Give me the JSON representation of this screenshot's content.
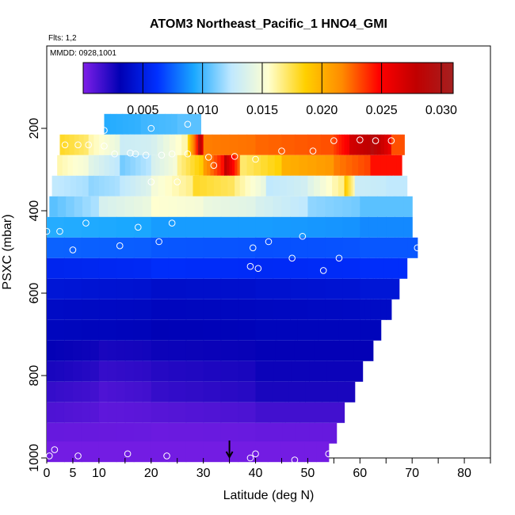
{
  "chart_data": {
    "type": "heatmap",
    "title": "ATOM3 Northeast_Pacific_1 HNO4_GMI",
    "flights_label": "Flts: 1,2",
    "dates_label": "MMDD: 0928,1001",
    "xlabel": "Latitude (deg N)",
    "ylabel": "PSXC (mbar)",
    "xlim": [
      0,
      85
    ],
    "ylim": [
      1000,
      0
    ],
    "x_ticks": [
      0,
      5,
      10,
      20,
      30,
      40,
      50,
      60,
      70,
      80
    ],
    "y_ticks": [
      200,
      400,
      600,
      800,
      1000
    ],
    "colorbar": {
      "range": [
        0,
        0.031
      ],
      "ticks": [
        "0.005",
        "0.010",
        "0.015",
        "0.020",
        "0.025",
        "0.030"
      ],
      "tick_values": [
        0.005,
        0.01,
        0.015,
        0.02,
        0.025,
        0.03
      ],
      "colors": [
        "#7f1fe8",
        "#0000b4",
        "#0030ff",
        "#1aa8ff",
        "#bfe8ff",
        "#ffffd0",
        "#ffd000",
        "#ff8a00",
        "#ff0000",
        "#c00000",
        "#a52020"
      ]
    },
    "arrow_latitude": 35,
    "layers": [
      {
        "p": 190,
        "x0": 11,
        "x1": 29.5,
        "segments": [
          [
            11,
            0.0095
          ],
          [
            18,
            0.01
          ],
          [
            25,
            0.0105
          ]
        ]
      },
      {
        "p": 240,
        "x0": 2.5,
        "x1": 68.5,
        "segments": [
          [
            2.5,
            0.018
          ],
          [
            8,
            0.016
          ],
          [
            14,
            0.013
          ],
          [
            20,
            0.0135
          ],
          [
            27,
            0.0185
          ],
          [
            29,
            0.03
          ],
          [
            30,
            0.022
          ],
          [
            40,
            0.0225
          ],
          [
            55,
            0.0235
          ],
          [
            58,
            0.027
          ],
          [
            62,
            0.029
          ],
          [
            66,
            0.023
          ]
        ]
      },
      {
        "p": 290,
        "x0": 2,
        "x1": 68,
        "segments": [
          [
            2,
            0.016
          ],
          [
            8,
            0.014
          ],
          [
            14,
            0.011
          ],
          [
            20,
            0.0135
          ],
          [
            25,
            0.0165
          ],
          [
            30,
            0.021
          ],
          [
            34,
            0.028
          ],
          [
            37,
            0.017
          ],
          [
            45,
            0.02
          ],
          [
            55,
            0.022
          ],
          [
            62,
            0.0245
          ]
        ]
      },
      {
        "p": 340,
        "x0": 1,
        "x1": 69,
        "segments": [
          [
            1,
            0.0125
          ],
          [
            8,
            0.0115
          ],
          [
            14,
            0.0125
          ],
          [
            20,
            0.015
          ],
          [
            28,
            0.018
          ],
          [
            36,
            0.0165
          ],
          [
            42,
            0.0125
          ],
          [
            50,
            0.014
          ],
          [
            57,
            0.019
          ],
          [
            59,
            0.013
          ],
          [
            65,
            0.0125
          ]
        ]
      },
      {
        "p": 390,
        "x0": 0.5,
        "x1": 70,
        "segments": [
          [
            0.5,
            0.0105
          ],
          [
            10,
            0.0135
          ],
          [
            20,
            0.0155
          ],
          [
            30,
            0.0145
          ],
          [
            40,
            0.0135
          ],
          [
            50,
            0.0115
          ],
          [
            60,
            0.0105
          ]
        ]
      },
      {
        "p": 440,
        "x0": 0,
        "x1": 70,
        "segments": [
          [
            0,
            0.0095
          ],
          [
            20,
            0.009
          ],
          [
            40,
            0.009
          ],
          [
            60,
            0.0085
          ]
        ]
      },
      {
        "p": 490,
        "x0": 0,
        "x1": 71,
        "segments": [
          [
            0,
            0.0075
          ],
          [
            20,
            0.0072
          ],
          [
            40,
            0.007
          ],
          [
            60,
            0.0072
          ]
        ]
      },
      {
        "p": 540,
        "x0": 0,
        "x1": 69,
        "segments": [
          [
            0,
            0.0055
          ],
          [
            20,
            0.006
          ],
          [
            40,
            0.0058
          ],
          [
            60,
            0.006
          ]
        ]
      },
      {
        "p": 590,
        "x0": 0,
        "x1": 67.5,
        "segments": [
          [
            0,
            0.0045
          ],
          [
            20,
            0.004
          ],
          [
            40,
            0.0042
          ],
          [
            60,
            0.0045
          ]
        ]
      },
      {
        "p": 640,
        "x0": 0,
        "x1": 66,
        "segments": [
          [
            0,
            0.0038
          ],
          [
            20,
            0.0035
          ],
          [
            40,
            0.0036
          ],
          [
            60,
            0.0038
          ]
        ]
      },
      {
        "p": 690,
        "x0": 0,
        "x1": 64,
        "segments": [
          [
            0,
            0.0035
          ],
          [
            20,
            0.0032
          ],
          [
            40,
            0.0034
          ]
        ]
      },
      {
        "p": 740,
        "x0": 0,
        "x1": 62.5,
        "segments": [
          [
            0,
            0.003
          ],
          [
            10,
            0.0025
          ],
          [
            20,
            0.0028
          ],
          [
            40,
            0.003
          ]
        ]
      },
      {
        "p": 790,
        "x0": 0,
        "x1": 60.5,
        "segments": [
          [
            0,
            0.0025
          ],
          [
            10,
            0.0018
          ],
          [
            20,
            0.0022
          ],
          [
            40,
            0.0028
          ]
        ]
      },
      {
        "p": 840,
        "x0": 0,
        "x1": 59,
        "segments": [
          [
            0,
            0.0018
          ],
          [
            10,
            0.0012
          ],
          [
            20,
            0.0018
          ],
          [
            40,
            0.0025
          ]
        ]
      },
      {
        "p": 890,
        "x0": 0,
        "x1": 57,
        "segments": [
          [
            0,
            0.0012
          ],
          [
            10,
            0.0008
          ],
          [
            20,
            0.001
          ],
          [
            40,
            0.0015
          ]
        ]
      },
      {
        "p": 940,
        "x0": 0,
        "x1": 55.5,
        "segments": [
          [
            0,
            0.0006
          ],
          [
            20,
            0.0005
          ],
          [
            40,
            0.0006
          ]
        ]
      },
      {
        "p": 985,
        "x0": 0,
        "x1": 54,
        "segments": [
          [
            0,
            0.0003
          ],
          [
            20,
            0.0003
          ],
          [
            40,
            0.0003
          ]
        ]
      }
    ],
    "points": [
      [
        11,
        205
      ],
      [
        20,
        200
      ],
      [
        27,
        190
      ],
      [
        11,
        243
      ],
      [
        3.5,
        240
      ],
      [
        6,
        240
      ],
      [
        8,
        240
      ],
      [
        55,
        230
      ],
      [
        60,
        228
      ],
      [
        63,
        230
      ],
      [
        66,
        230
      ],
      [
        17,
        262
      ],
      [
        19,
        265
      ],
      [
        22,
        265
      ],
      [
        24,
        262
      ],
      [
        27,
        262
      ],
      [
        31,
        270
      ],
      [
        36,
        268
      ],
      [
        40,
        275
      ],
      [
        45,
        255
      ],
      [
        51,
        255
      ],
      [
        32,
        290
      ],
      [
        20,
        330
      ],
      [
        25,
        330
      ],
      [
        13,
        262
      ],
      [
        16,
        260
      ],
      [
        0,
        450
      ],
      [
        2.5,
        450
      ],
      [
        7.5,
        430
      ],
      [
        17.5,
        440
      ],
      [
        24,
        430
      ],
      [
        21.5,
        475
      ],
      [
        14,
        485
      ],
      [
        5,
        495
      ],
      [
        39.5,
        490
      ],
      [
        42.5,
        475
      ],
      [
        49,
        462
      ],
      [
        71,
        490
      ],
      [
        47,
        515
      ],
      [
        56,
        515
      ],
      [
        53,
        545
      ],
      [
        39,
        535
      ],
      [
        40.5,
        540
      ],
      [
        0.5,
        995
      ],
      [
        1.5,
        980
      ],
      [
        6,
        995
      ],
      [
        15.5,
        990
      ],
      [
        23,
        995
      ],
      [
        40,
        990
      ],
      [
        39,
        1000
      ],
      [
        47.5,
        1005
      ],
      [
        54,
        990
      ]
    ]
  }
}
